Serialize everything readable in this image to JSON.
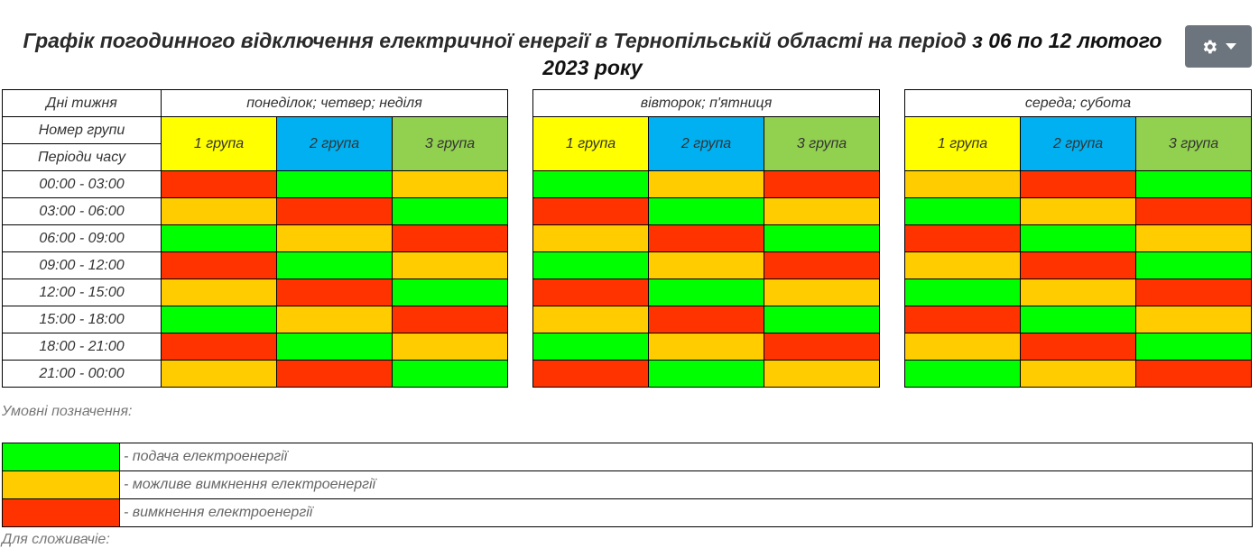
{
  "title": {
    "main": "Графік погодинного відключення електричної енергії  в Тернопільській області на період ",
    "range": "з 06 по 12 лютого 2023 року"
  },
  "toolbar": {
    "settings_icon": "gear-icon",
    "dropdown_icon": "caret-down-icon"
  },
  "row_labels": {
    "days": "Дні тижня",
    "group_number": "Номер групи",
    "periods": "Періоди часу"
  },
  "periods": [
    "00:00 - 03:00",
    "03:00 - 06:00",
    "06:00 - 09:00",
    "09:00 - 12:00",
    "12:00 - 15:00",
    "15:00 - 18:00",
    "18:00 - 21:00",
    "21:00 - 00:00"
  ],
  "day_groups": [
    {
      "label": "понеділок; четвер; неділя",
      "groups": [
        "1 група",
        "2 група",
        "3 група"
      ],
      "schedule": [
        [
          "off",
          "on",
          "maybe"
        ],
        [
          "maybe",
          "off",
          "on"
        ],
        [
          "on",
          "maybe",
          "off"
        ],
        [
          "off",
          "on",
          "maybe"
        ],
        [
          "maybe",
          "off",
          "on"
        ],
        [
          "on",
          "maybe",
          "off"
        ],
        [
          "off",
          "on",
          "maybe"
        ],
        [
          "maybe",
          "off",
          "on"
        ]
      ]
    },
    {
      "label": "вівторок; п'ятниця",
      "groups": [
        "1 група",
        "2 група",
        "3 група"
      ],
      "schedule": [
        [
          "on",
          "maybe",
          "off"
        ],
        [
          "off",
          "on",
          "maybe"
        ],
        [
          "maybe",
          "off",
          "on"
        ],
        [
          "on",
          "maybe",
          "off"
        ],
        [
          "off",
          "on",
          "maybe"
        ],
        [
          "maybe",
          "off",
          "on"
        ],
        [
          "on",
          "maybe",
          "off"
        ],
        [
          "off",
          "on",
          "maybe"
        ]
      ]
    },
    {
      "label": "середа; субота",
      "groups": [
        "1 група",
        "2 група",
        "3 група"
      ],
      "schedule": [
        [
          "maybe",
          "off",
          "on"
        ],
        [
          "on",
          "maybe",
          "off"
        ],
        [
          "off",
          "on",
          "maybe"
        ],
        [
          "maybe",
          "off",
          "on"
        ],
        [
          "on",
          "maybe",
          "off"
        ],
        [
          "off",
          "on",
          "maybe"
        ],
        [
          "maybe",
          "off",
          "on"
        ],
        [
          "on",
          "maybe",
          "off"
        ]
      ]
    }
  ],
  "status_colors": {
    "on": "#00ff00",
    "maybe": "#ffcc00",
    "off": "#ff3300"
  },
  "group_colors": [
    "#ffff00",
    "#00b0f0",
    "#92d050"
  ],
  "legend": {
    "caption": "Умовні позначення:",
    "items": [
      {
        "status": "on",
        "text": "- подача електроенергії"
      },
      {
        "status": "maybe",
        "text": "- можливе вимкнення електроенергії"
      },
      {
        "status": "off",
        "text": "- вимкнення електроенергії"
      }
    ]
  },
  "footer": {
    "caption": "Для сложивачіе:"
  }
}
